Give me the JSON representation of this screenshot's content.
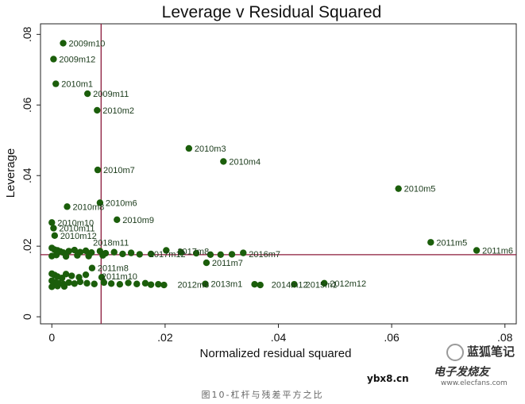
{
  "chart_data": {
    "type": "scatter",
    "title": "Leverage v Residual Squared",
    "xlabel": "Normalized residual squared",
    "ylabel": "Leverage",
    "xlim": [
      -0.002,
      0.082
    ],
    "ylim": [
      -0.002,
      0.083
    ],
    "xticks": [
      0,
      0.02,
      0.04,
      0.06,
      0.08
    ],
    "xtick_labels": [
      "0",
      ".02",
      ".04",
      ".06",
      ".08"
    ],
    "yticks": [
      0,
      0.02,
      0.04,
      0.06,
      0.08
    ],
    "ytick_labels": [
      "0",
      ".02",
      ".04",
      ".06",
      ".08"
    ],
    "grid": false,
    "marker_color": "#1b5e0b",
    "refline_color": "#8b1a3a",
    "ref_lines": {
      "x_mean_resid": 0.0087,
      "y_mean_leverage": 0.0176
    },
    "labeled_points": [
      {
        "label": "2009m10",
        "x": 0.002,
        "y": 0.0775
      },
      {
        "label": "2009m12",
        "x": 0.0003,
        "y": 0.073
      },
      {
        "label": "2010m1",
        "x": 0.0007,
        "y": 0.066
      },
      {
        "label": "2009m11",
        "x": 0.0063,
        "y": 0.0632
      },
      {
        "label": "2010m2",
        "x": 0.008,
        "y": 0.0585
      },
      {
        "label": "2010m3",
        "x": 0.0242,
        "y": 0.0477
      },
      {
        "label": "2010m4",
        "x": 0.0303,
        "y": 0.044
      },
      {
        "label": "2010m7",
        "x": 0.0081,
        "y": 0.0416
      },
      {
        "label": "2010m5",
        "x": 0.0612,
        "y": 0.0363
      },
      {
        "label": "2010m6",
        "x": 0.0085,
        "y": 0.0323
      },
      {
        "label": "2010m8",
        "x": 0.0027,
        "y": 0.0312
      },
      {
        "label": "2010m9",
        "x": 0.0115,
        "y": 0.0275
      },
      {
        "label": "2010m10",
        "x": 0.0,
        "y": 0.0267
      },
      {
        "label": "2010m11",
        "x": 0.0003,
        "y": 0.0251
      },
      {
        "label": "2010m12",
        "x": 0.0005,
        "y": 0.023
      },
      {
        "label": "2011m5",
        "x": 0.0669,
        "y": 0.0211
      },
      {
        "label": "2011m6",
        "x": 0.075,
        "y": 0.0188
      },
      {
        "label": "2011m7",
        "x": 0.0273,
        "y": 0.0153
      },
      {
        "label": "2011m8",
        "x": 0.0071,
        "y": 0.0138
      },
      {
        "label": "2013m1",
        "x": 0.0271,
        "y": 0.0093
      },
      {
        "label": "2012m12",
        "x": 0.0481,
        "y": 0.0095
      }
    ],
    "overlapping_labels": [
      {
        "text": "2018m11",
        "x": 0.0063,
        "y": 0.0211
      },
      {
        "text": "2017m8",
        "x": 0.0212,
        "y": 0.0186
      },
      {
        "text": "2016m7",
        "x": 0.0338,
        "y": 0.0178
      },
      {
        "text": "2014m12",
        "x": 0.0378,
        "y": 0.0091
      },
      {
        "text": "2015m1",
        "x": 0.0438,
        "y": 0.0091
      },
      {
        "text": "2012m6",
        "x": 0.0212,
        "y": 0.0091
      },
      {
        "text": "2011m10",
        "x": 0.0078,
        "y": 0.0115
      },
      {
        "text": "2017m12",
        "x": 0.0162,
        "y": 0.0178
      }
    ],
    "unlabeled_points": [
      {
        "x": 0.0,
        "y": 0.0195
      },
      {
        "x": 0.0005,
        "y": 0.019
      },
      {
        "x": 0.001,
        "y": 0.0188
      },
      {
        "x": 0.0015,
        "y": 0.0185
      },
      {
        "x": 0.002,
        "y": 0.0182
      },
      {
        "x": 0.003,
        "y": 0.0186
      },
      {
        "x": 0.004,
        "y": 0.0189
      },
      {
        "x": 0.005,
        "y": 0.0183
      },
      {
        "x": 0.006,
        "y": 0.0187
      },
      {
        "x": 0.007,
        "y": 0.0182
      },
      {
        "x": 0.0085,
        "y": 0.0186
      },
      {
        "x": 0.0095,
        "y": 0.018
      },
      {
        "x": 0.011,
        "y": 0.0183
      },
      {
        "x": 0.0125,
        "y": 0.0178
      },
      {
        "x": 0.014,
        "y": 0.0181
      },
      {
        "x": 0.0155,
        "y": 0.0177
      },
      {
        "x": 0.0175,
        "y": 0.0178
      },
      {
        "x": 0.0202,
        "y": 0.0188
      },
      {
        "x": 0.0228,
        "y": 0.0183
      },
      {
        "x": 0.0255,
        "y": 0.018
      },
      {
        "x": 0.028,
        "y": 0.0176
      },
      {
        "x": 0.0298,
        "y": 0.0176
      },
      {
        "x": 0.0318,
        "y": 0.0177
      },
      {
        "x": 0.0338,
        "y": 0.0181
      },
      {
        "x": 0.0,
        "y": 0.0172
      },
      {
        "x": 0.0008,
        "y": 0.0175
      },
      {
        "x": 0.0025,
        "y": 0.0171
      },
      {
        "x": 0.0045,
        "y": 0.0174
      },
      {
        "x": 0.0065,
        "y": 0.0172
      },
      {
        "x": 0.009,
        "y": 0.0174
      },
      {
        "x": 0.0,
        "y": 0.0122
      },
      {
        "x": 0.0005,
        "y": 0.0118
      },
      {
        "x": 0.001,
        "y": 0.0114
      },
      {
        "x": 0.0018,
        "y": 0.011
      },
      {
        "x": 0.0025,
        "y": 0.0121
      },
      {
        "x": 0.0035,
        "y": 0.0116
      },
      {
        "x": 0.0048,
        "y": 0.0112
      },
      {
        "x": 0.006,
        "y": 0.0119
      },
      {
        "x": 0.0088,
        "y": 0.0112
      },
      {
        "x": 0.0,
        "y": 0.0102
      },
      {
        "x": 0.0006,
        "y": 0.0098
      },
      {
        "x": 0.0012,
        "y": 0.0095
      },
      {
        "x": 0.002,
        "y": 0.0093
      },
      {
        "x": 0.003,
        "y": 0.0097
      },
      {
        "x": 0.004,
        "y": 0.0094
      },
      {
        "x": 0.005,
        "y": 0.0099
      },
      {
        "x": 0.0062,
        "y": 0.0095
      },
      {
        "x": 0.0075,
        "y": 0.0093
      },
      {
        "x": 0.0092,
        "y": 0.0097
      },
      {
        "x": 0.0105,
        "y": 0.0094
      },
      {
        "x": 0.012,
        "y": 0.0092
      },
      {
        "x": 0.0135,
        "y": 0.0096
      },
      {
        "x": 0.015,
        "y": 0.0093
      },
      {
        "x": 0.0165,
        "y": 0.0095
      },
      {
        "x": 0.0175,
        "y": 0.0091
      },
      {
        "x": 0.0188,
        "y": 0.0092
      },
      {
        "x": 0.0198,
        "y": 0.009
      },
      {
        "x": 0.0358,
        "y": 0.0092
      },
      {
        "x": 0.0368,
        "y": 0.009
      },
      {
        "x": 0.0428,
        "y": 0.0092
      },
      {
        "x": 0.0,
        "y": 0.0085
      },
      {
        "x": 0.001,
        "y": 0.0087
      },
      {
        "x": 0.0022,
        "y": 0.0086
      }
    ]
  },
  "caption": "图10-杠杆与残差平方之比",
  "watermarks": {
    "wechat": "蓝狐笔记",
    "site": "ybx8.cn",
    "elec": "电子发烧友",
    "elec_url": "www.elecfans.com"
  }
}
